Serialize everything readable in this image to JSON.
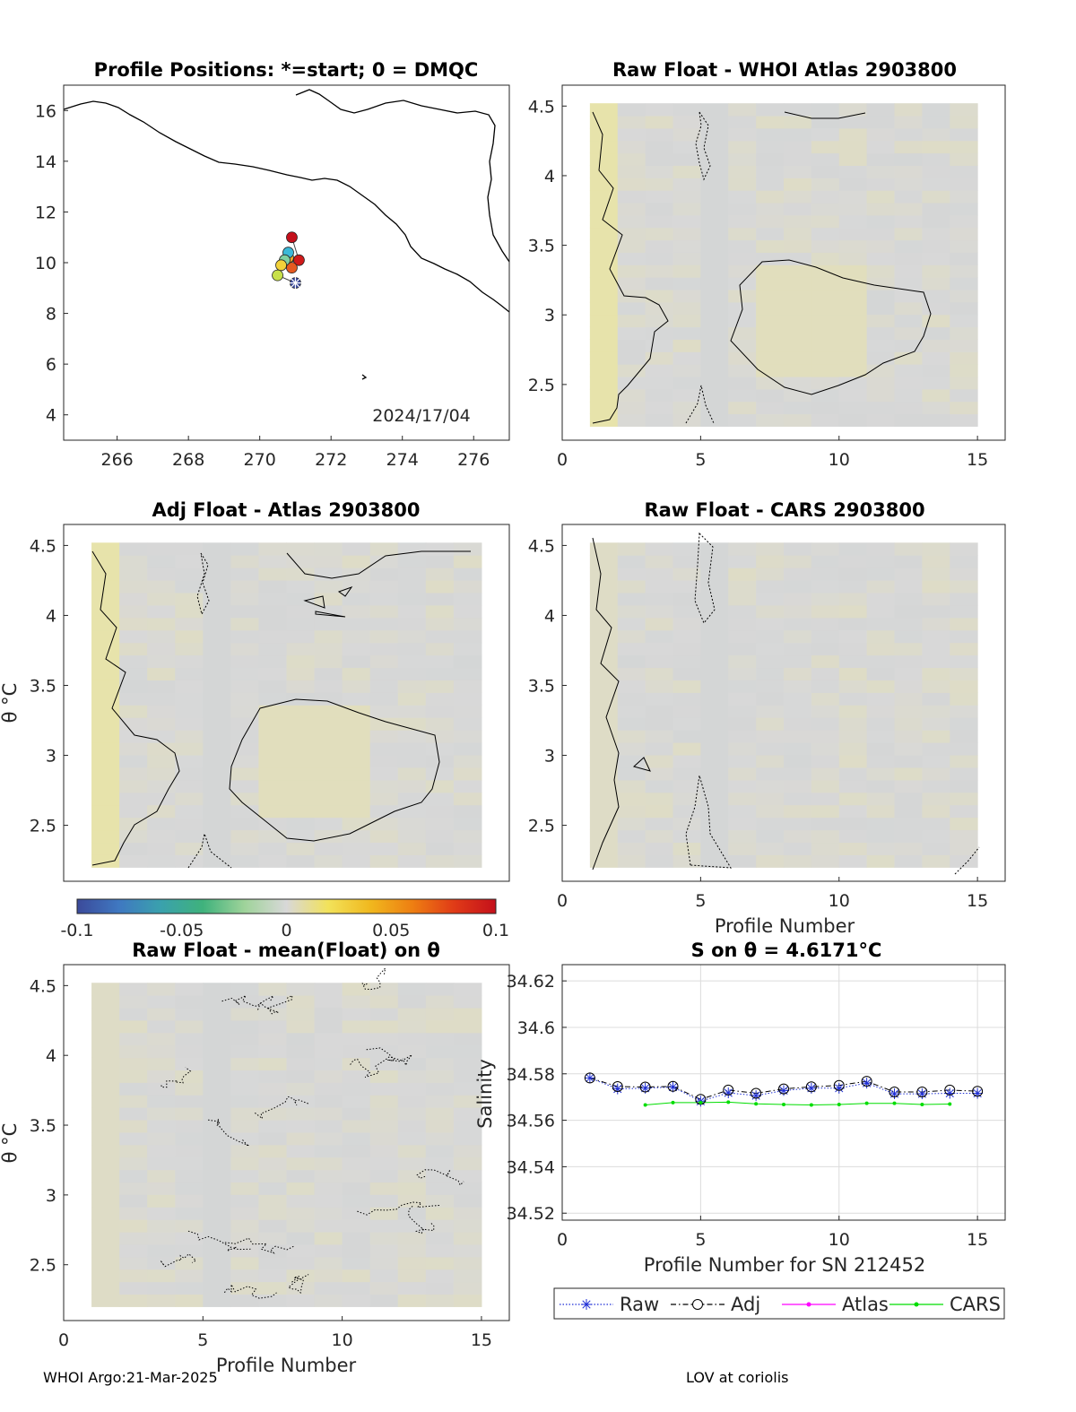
{
  "footer": {
    "left": "WHOI Argo:21-Mar-2025",
    "right": "LOV at coriolis"
  },
  "colorbar": {
    "ticks": [
      "-0.1",
      "-0.05",
      "0",
      "0.05",
      "0.1"
    ],
    "range": [
      -0.1,
      0.1
    ],
    "colormap": [
      "#3b4a9a",
      "#3f78c1",
      "#3aa1ad",
      "#3fb27c",
      "#9fd39a",
      "#d8d8d8",
      "#f2e25a",
      "#f0b81e",
      "#ee7f12",
      "#e03b17",
      "#c4101b"
    ]
  },
  "chart_data": [
    {
      "id": "map",
      "type": "scatter",
      "title": "Profile Positions: *=start; 0 = DMQC",
      "annotation": "2024/17/04",
      "xlim": [
        264.5,
        277
      ],
      "ylim": [
        3,
        17
      ],
      "xticks": [
        "266",
        "268",
        "270",
        "272",
        "274",
        "276"
      ],
      "yticks": [
        "4",
        "6",
        "8",
        "10",
        "12",
        "14",
        "16"
      ],
      "start_marker": {
        "x": 271.0,
        "y": 9.2
      },
      "points": [
        {
          "x": 271.0,
          "y": 9.2,
          "color": "#3b4a9a"
        },
        {
          "x": 270.5,
          "y": 9.5,
          "color": "#c8e04a"
        },
        {
          "x": 270.6,
          "y": 9.9,
          "color": "#f2d23a"
        },
        {
          "x": 270.7,
          "y": 10.1,
          "color": "#7fd0a0"
        },
        {
          "x": 270.8,
          "y": 10.4,
          "color": "#3cb9d8"
        },
        {
          "x": 270.8,
          "y": 10.2,
          "color": "#f0a82a"
        },
        {
          "x": 270.9,
          "y": 9.8,
          "color": "#e55a20"
        },
        {
          "x": 270.7,
          "y": 10.0,
          "color": "#ee8c1a"
        },
        {
          "x": 271.1,
          "y": 10.1,
          "color": "#d01a1a"
        },
        {
          "x": 270.9,
          "y": 11.0,
          "color": "#c4101b"
        }
      ]
    },
    {
      "id": "p2",
      "type": "heatmap",
      "title": "Raw Float - WHOI Atlas  2903800",
      "xlim": [
        0,
        16
      ],
      "ylim": [
        2.1,
        4.65
      ],
      "xticks": [
        "0",
        "5",
        "10",
        "15"
      ],
      "yticks": [
        "2.5",
        "3",
        "3.5",
        "4",
        "4.5"
      ],
      "xlabel": "",
      "ylabel": ""
    },
    {
      "id": "p3",
      "type": "heatmap",
      "title": "Adj Float - Atlas  2903800",
      "xlim": [
        0,
        16
      ],
      "ylim": [
        2.1,
        4.65
      ],
      "xticks": [],
      "yticks": [
        "2.5",
        "3",
        "3.5",
        "4",
        "4.5"
      ],
      "xlabel": "",
      "ylabel": "θ °C"
    },
    {
      "id": "p4",
      "type": "heatmap",
      "title": "Raw Float - CARS  2903800",
      "xlim": [
        0,
        16
      ],
      "ylim": [
        2.1,
        4.65
      ],
      "xticks": [
        "0",
        "5",
        "10",
        "15"
      ],
      "yticks": [
        "2.5",
        "3",
        "3.5",
        "4",
        "4.5"
      ],
      "xlabel": "Profile Number",
      "ylabel": ""
    },
    {
      "id": "p5",
      "type": "heatmap",
      "title": "Raw Float - mean(Float) on θ",
      "xlim": [
        0,
        16
      ],
      "ylim": [
        2.1,
        4.65
      ],
      "xticks": [
        "0",
        "5",
        "10",
        "15"
      ],
      "yticks": [
        "2.5",
        "3",
        "3.5",
        "4",
        "4.5"
      ],
      "xlabel": "Profile Number",
      "ylabel": "θ °C"
    },
    {
      "id": "p6",
      "type": "line",
      "title": "S on θ = 4.6171°C",
      "xlabel": "Profile Number for SN 212452",
      "ylabel": "Salinity",
      "xlim": [
        0,
        16
      ],
      "ylim": [
        34.517,
        34.627
      ],
      "xticks": [
        "0",
        "5",
        "10",
        "15"
      ],
      "yticks": [
        "34.52",
        "34.54",
        "34.56",
        "34.58",
        "34.6",
        "34.62"
      ],
      "grid": true,
      "legend": "bottom",
      "series": [
        {
          "name": "Raw",
          "color": "#1f2fd6",
          "x": [
            1,
            2,
            3,
            4,
            5,
            6,
            7,
            8,
            9,
            10,
            11,
            12,
            13,
            14,
            15
          ],
          "values": [
            34.5782,
            34.5735,
            34.5738,
            34.5743,
            34.5682,
            34.5718,
            34.5706,
            34.5728,
            34.5738,
            34.5738,
            34.576,
            34.5714,
            34.5714,
            34.5716,
            34.5716
          ]
        },
        {
          "name": "Adj",
          "color": "#000000",
          "x": [
            1,
            2,
            3,
            4,
            5,
            6,
            7,
            8,
            9,
            10,
            11,
            12,
            13,
            14,
            15
          ],
          "values": [
            34.5782,
            34.5745,
            34.5743,
            34.5746,
            34.569,
            34.573,
            34.5716,
            34.5735,
            34.5744,
            34.575,
            34.5768,
            34.5722,
            34.5722,
            34.573,
            34.5725
          ]
        },
        {
          "name": "Atlas",
          "color": "#ff00ff",
          "x": [],
          "values": []
        },
        {
          "name": "CARS",
          "color": "#00dd00",
          "x": [
            3,
            4,
            5,
            6,
            7,
            8,
            9,
            10,
            11,
            12,
            13,
            14
          ],
          "values": [
            34.5666,
            34.5676,
            34.5676,
            34.5678,
            34.5671,
            34.5668,
            34.5666,
            34.5668,
            34.5673,
            34.5673,
            34.5668,
            34.567
          ]
        }
      ]
    }
  ]
}
